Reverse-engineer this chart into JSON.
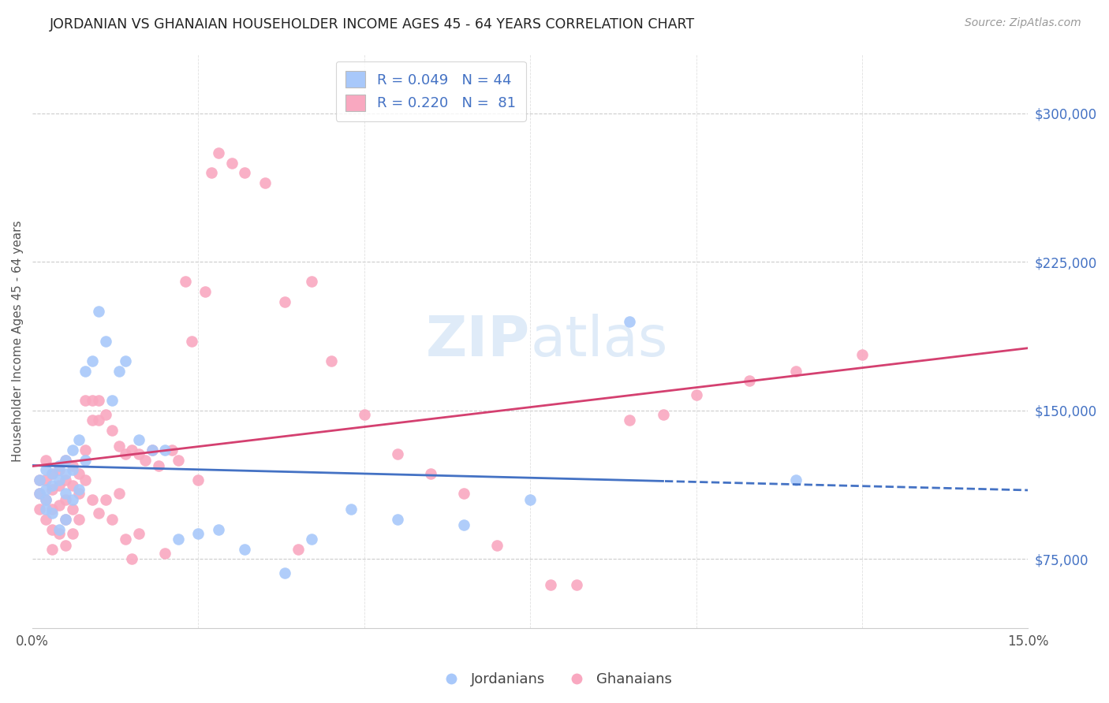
{
  "title": "JORDANIAN VS GHANAIAN HOUSEHOLDER INCOME AGES 45 - 64 YEARS CORRELATION CHART",
  "source": "Source: ZipAtlas.com",
  "ylabel": "Householder Income Ages 45 - 64 years",
  "xlim": [
    0.0,
    0.15
  ],
  "ylim": [
    40000,
    330000
  ],
  "yticks": [
    75000,
    150000,
    225000,
    300000
  ],
  "ytick_labels": [
    "$75,000",
    "$150,000",
    "$225,000",
    "$300,000"
  ],
  "legend_jordan": "R = 0.049   N = 44",
  "legend_ghana": "R = 0.220   N =  81",
  "jordan_color": "#a8c8fa",
  "ghana_color": "#f9a8c0",
  "jordan_line_color": "#4472c4",
  "ghana_line_color": "#d44070",
  "jordan_line_solid_end": 0.095,
  "jordan_x": [
    0.001,
    0.001,
    0.002,
    0.002,
    0.002,
    0.002,
    0.003,
    0.003,
    0.003,
    0.004,
    0.004,
    0.004,
    0.005,
    0.005,
    0.005,
    0.005,
    0.006,
    0.006,
    0.006,
    0.007,
    0.007,
    0.008,
    0.008,
    0.009,
    0.01,
    0.011,
    0.012,
    0.013,
    0.014,
    0.016,
    0.018,
    0.02,
    0.022,
    0.025,
    0.028,
    0.032,
    0.038,
    0.042,
    0.048,
    0.055,
    0.065,
    0.075,
    0.09,
    0.115
  ],
  "jordan_y": [
    115000,
    108000,
    120000,
    110000,
    105000,
    100000,
    118000,
    112000,
    98000,
    122000,
    115000,
    90000,
    125000,
    118000,
    108000,
    95000,
    130000,
    120000,
    105000,
    135000,
    110000,
    170000,
    125000,
    175000,
    200000,
    185000,
    155000,
    170000,
    175000,
    135000,
    130000,
    130000,
    85000,
    88000,
    90000,
    80000,
    68000,
    85000,
    100000,
    95000,
    92000,
    105000,
    195000,
    115000
  ],
  "ghana_x": [
    0.001,
    0.001,
    0.001,
    0.002,
    0.002,
    0.002,
    0.002,
    0.003,
    0.003,
    0.003,
    0.003,
    0.003,
    0.004,
    0.004,
    0.004,
    0.004,
    0.005,
    0.005,
    0.005,
    0.005,
    0.005,
    0.006,
    0.006,
    0.006,
    0.006,
    0.007,
    0.007,
    0.007,
    0.008,
    0.008,
    0.008,
    0.009,
    0.009,
    0.009,
    0.01,
    0.01,
    0.01,
    0.011,
    0.011,
    0.012,
    0.012,
    0.013,
    0.013,
    0.014,
    0.014,
    0.015,
    0.015,
    0.016,
    0.016,
    0.017,
    0.018,
    0.019,
    0.02,
    0.021,
    0.022,
    0.023,
    0.024,
    0.025,
    0.026,
    0.027,
    0.028,
    0.03,
    0.032,
    0.035,
    0.038,
    0.04,
    0.042,
    0.045,
    0.05,
    0.055,
    0.06,
    0.065,
    0.07,
    0.078,
    0.082,
    0.09,
    0.095,
    0.1,
    0.108,
    0.115,
    0.125
  ],
  "ghana_y": [
    115000,
    108000,
    100000,
    125000,
    115000,
    105000,
    95000,
    118000,
    110000,
    100000,
    90000,
    80000,
    120000,
    112000,
    102000,
    88000,
    125000,
    115000,
    105000,
    95000,
    82000,
    122000,
    112000,
    100000,
    88000,
    118000,
    108000,
    95000,
    155000,
    130000,
    115000,
    155000,
    145000,
    105000,
    155000,
    145000,
    98000,
    148000,
    105000,
    140000,
    95000,
    132000,
    108000,
    128000,
    85000,
    130000,
    75000,
    128000,
    88000,
    125000,
    130000,
    122000,
    78000,
    130000,
    125000,
    215000,
    185000,
    115000,
    210000,
    270000,
    280000,
    275000,
    270000,
    265000,
    205000,
    80000,
    215000,
    175000,
    148000,
    128000,
    118000,
    108000,
    82000,
    62000,
    62000,
    145000,
    148000,
    158000,
    165000,
    170000,
    178000
  ]
}
